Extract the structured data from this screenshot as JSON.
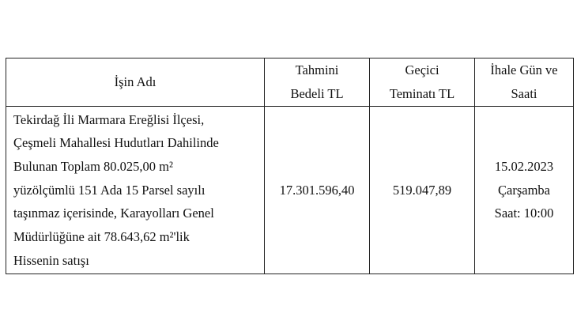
{
  "table": {
    "headers": [
      [
        "İşin Adı"
      ],
      [
        "Tahmini",
        "Bedeli TL"
      ],
      [
        "Geçici",
        "Teminatı TL"
      ],
      [
        "İhale Gün ve",
        "Saati"
      ]
    ],
    "row": {
      "description_lines": [
        "Tekirdağ İli Marmara Ereğlisi İlçesi,",
        "Çeşmeli Mahallesi Hudutları Dahilinde",
        "Bulunan Toplam 80.025,00 m²",
        "yüzölçümlü 151 Ada 15 Parsel sayılı",
        "taşınmaz içerisinde, Karayolları Genel",
        "Müdürlüğüne ait 78.643,62 m²'lik",
        "Hissenin satışı"
      ],
      "estimated_price": "17.301.596,40",
      "temporary_guarantee": "519.047,89",
      "tender_lines": [
        "15.02.2023",
        "Çarşamba",
        "Saat: 10:00"
      ]
    }
  }
}
